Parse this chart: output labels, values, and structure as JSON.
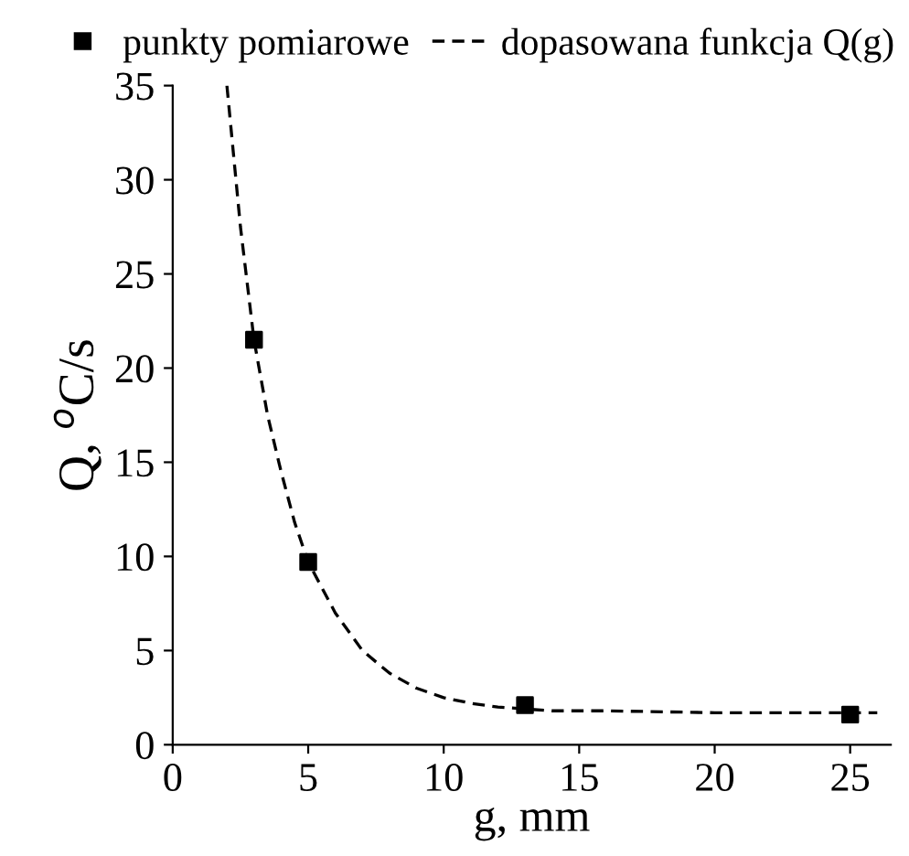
{
  "chart_data": {
    "type": "scatter",
    "xlabel": "g, mm",
    "ylabel": "Q, $^{o}$C/s",
    "series": [
      {
        "name": "punkty pomiarowe",
        "color": "#000000",
        "marker": "square",
        "x": [
          3,
          5,
          13,
          25
        ],
        "values": [
          21.5,
          9.7,
          2.1,
          1.6
        ]
      },
      {
        "name": "dopasowana funkcja Q(g)",
        "type": "line",
        "color": "#000000",
        "line_style": "dashed",
        "marker": "none",
        "x": [
          2,
          2.5,
          3,
          3.5,
          4,
          4.5,
          5,
          6,
          7,
          8,
          9,
          10,
          11,
          12,
          14,
          16,
          20,
          26
        ],
        "values": [
          35,
          27.5,
          21.5,
          17.5,
          14.5,
          11.8,
          9.7,
          7,
          5,
          3.8,
          3,
          2.5,
          2.2,
          2,
          1.8,
          1.8,
          1.7,
          1.7
        ]
      }
    ],
    "xlim": [
      0,
      26.5
    ],
    "xticks": [
      0,
      5,
      10,
      15,
      20,
      25
    ],
    "ylim": [
      0,
      35
    ],
    "yticks": [
      0,
      5,
      10,
      15,
      20,
      25,
      30,
      35
    ],
    "grid": false,
    "legend": "top"
  }
}
